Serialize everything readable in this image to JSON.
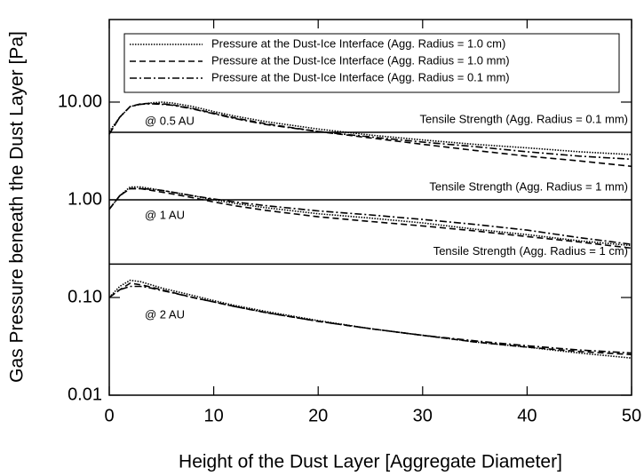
{
  "chart_data": {
    "type": "line",
    "x_label": "Height of the Dust Layer [Aggregate Diameter]",
    "y_label": "Gas Pressure beneath the Dust Layer [Pa]",
    "log_y": true,
    "xlim": [
      0,
      50
    ],
    "xticks": [
      0,
      10,
      20,
      30,
      40,
      50
    ],
    "ylim": [
      0.01,
      70
    ],
    "yticks": [
      {
        "value": 10,
        "label": "10.00"
      },
      {
        "value": 1,
        "label": "1.00"
      },
      {
        "value": 0.1,
        "label": "0.10"
      },
      {
        "value": 0.01,
        "label": "0.01"
      }
    ],
    "color": "#000000",
    "annotations": [
      "@ 0.5 AU",
      "@ 1 AU",
      "@ 2 AU"
    ],
    "x": [
      0,
      1,
      2,
      3,
      4,
      5,
      6,
      8,
      10,
      12,
      15,
      20,
      25,
      30,
      35,
      40,
      45,
      50
    ],
    "series": [
      {
        "name": "Pressure at the Dust-Ice Interface (Agg. Radius = 1.0 cm)",
        "dash": "1.5,1.5",
        "values": [
          [
            5,
            7,
            9,
            9.5,
            9.8,
            10,
            9.8,
            9,
            8,
            7.2,
            6.3,
            5.3,
            4.6,
            4.1,
            3.7,
            3.4,
            3.1,
            2.9
          ],
          [
            0.8,
            1.1,
            1.35,
            1.35,
            1.3,
            1.25,
            1.2,
            1.1,
            1.0,
            0.92,
            0.83,
            0.72,
            0.65,
            0.58,
            0.5,
            0.44,
            0.38,
            0.34
          ],
          [
            0.1,
            0.13,
            0.15,
            0.145,
            0.135,
            0.125,
            0.118,
            0.105,
            0.093,
            0.083,
            0.072,
            0.058,
            0.048,
            0.041,
            0.035,
            0.031,
            0.027,
            0.024
          ]
        ]
      },
      {
        "name": "Pressure at the Dust-Ice Interface (Agg. Radius = 1.0 mm)",
        "dash": "7,4",
        "values": [
          [
            4.7,
            7,
            9,
            9.6,
            9.7,
            9.6,
            9.4,
            8.6,
            7.7,
            6.9,
            6.0,
            5.0,
            4.3,
            3.7,
            3.2,
            2.8,
            2.5,
            2.2
          ],
          [
            0.8,
            1.1,
            1.3,
            1.3,
            1.25,
            1.2,
            1.15,
            1.05,
            0.95,
            0.87,
            0.78,
            0.67,
            0.6,
            0.54,
            0.48,
            0.42,
            0.37,
            0.32
          ],
          [
            0.1,
            0.12,
            0.14,
            0.135,
            0.128,
            0.12,
            0.113,
            0.1,
            0.09,
            0.081,
            0.07,
            0.057,
            0.048,
            0.041,
            0.035,
            0.031,
            0.028,
            0.026
          ]
        ]
      },
      {
        "name": "Pressure at the Dust-Ice Interface (Agg. Radius = 0.1 mm)",
        "dash": "8,3,2,3",
        "values": [
          [
            4.7,
            7,
            9,
            9.5,
            9.6,
            9.5,
            9.3,
            8.5,
            7.6,
            6.8,
            5.9,
            5.0,
            4.4,
            3.9,
            3.5,
            3.1,
            2.8,
            2.6
          ],
          [
            0.8,
            1.1,
            1.3,
            1.3,
            1.28,
            1.25,
            1.2,
            1.1,
            1.02,
            0.95,
            0.87,
            0.77,
            0.7,
            0.63,
            0.56,
            0.49,
            0.41,
            0.35
          ],
          [
            0.1,
            0.12,
            0.13,
            0.13,
            0.125,
            0.118,
            0.112,
            0.1,
            0.09,
            0.081,
            0.07,
            0.057,
            0.048,
            0.041,
            0.036,
            0.032,
            0.029,
            0.027
          ]
        ]
      }
    ],
    "hlines": [
      {
        "value": 4.9,
        "label": "Tensile Strength (Agg. Radius = 0.1 mm)"
      },
      {
        "value": 1.0,
        "label": "Tensile Strength (Agg. Radius = 1 mm)"
      },
      {
        "value": 0.22,
        "label": "Tensile Strength (Agg. Radius = 1 cm)"
      }
    ]
  }
}
